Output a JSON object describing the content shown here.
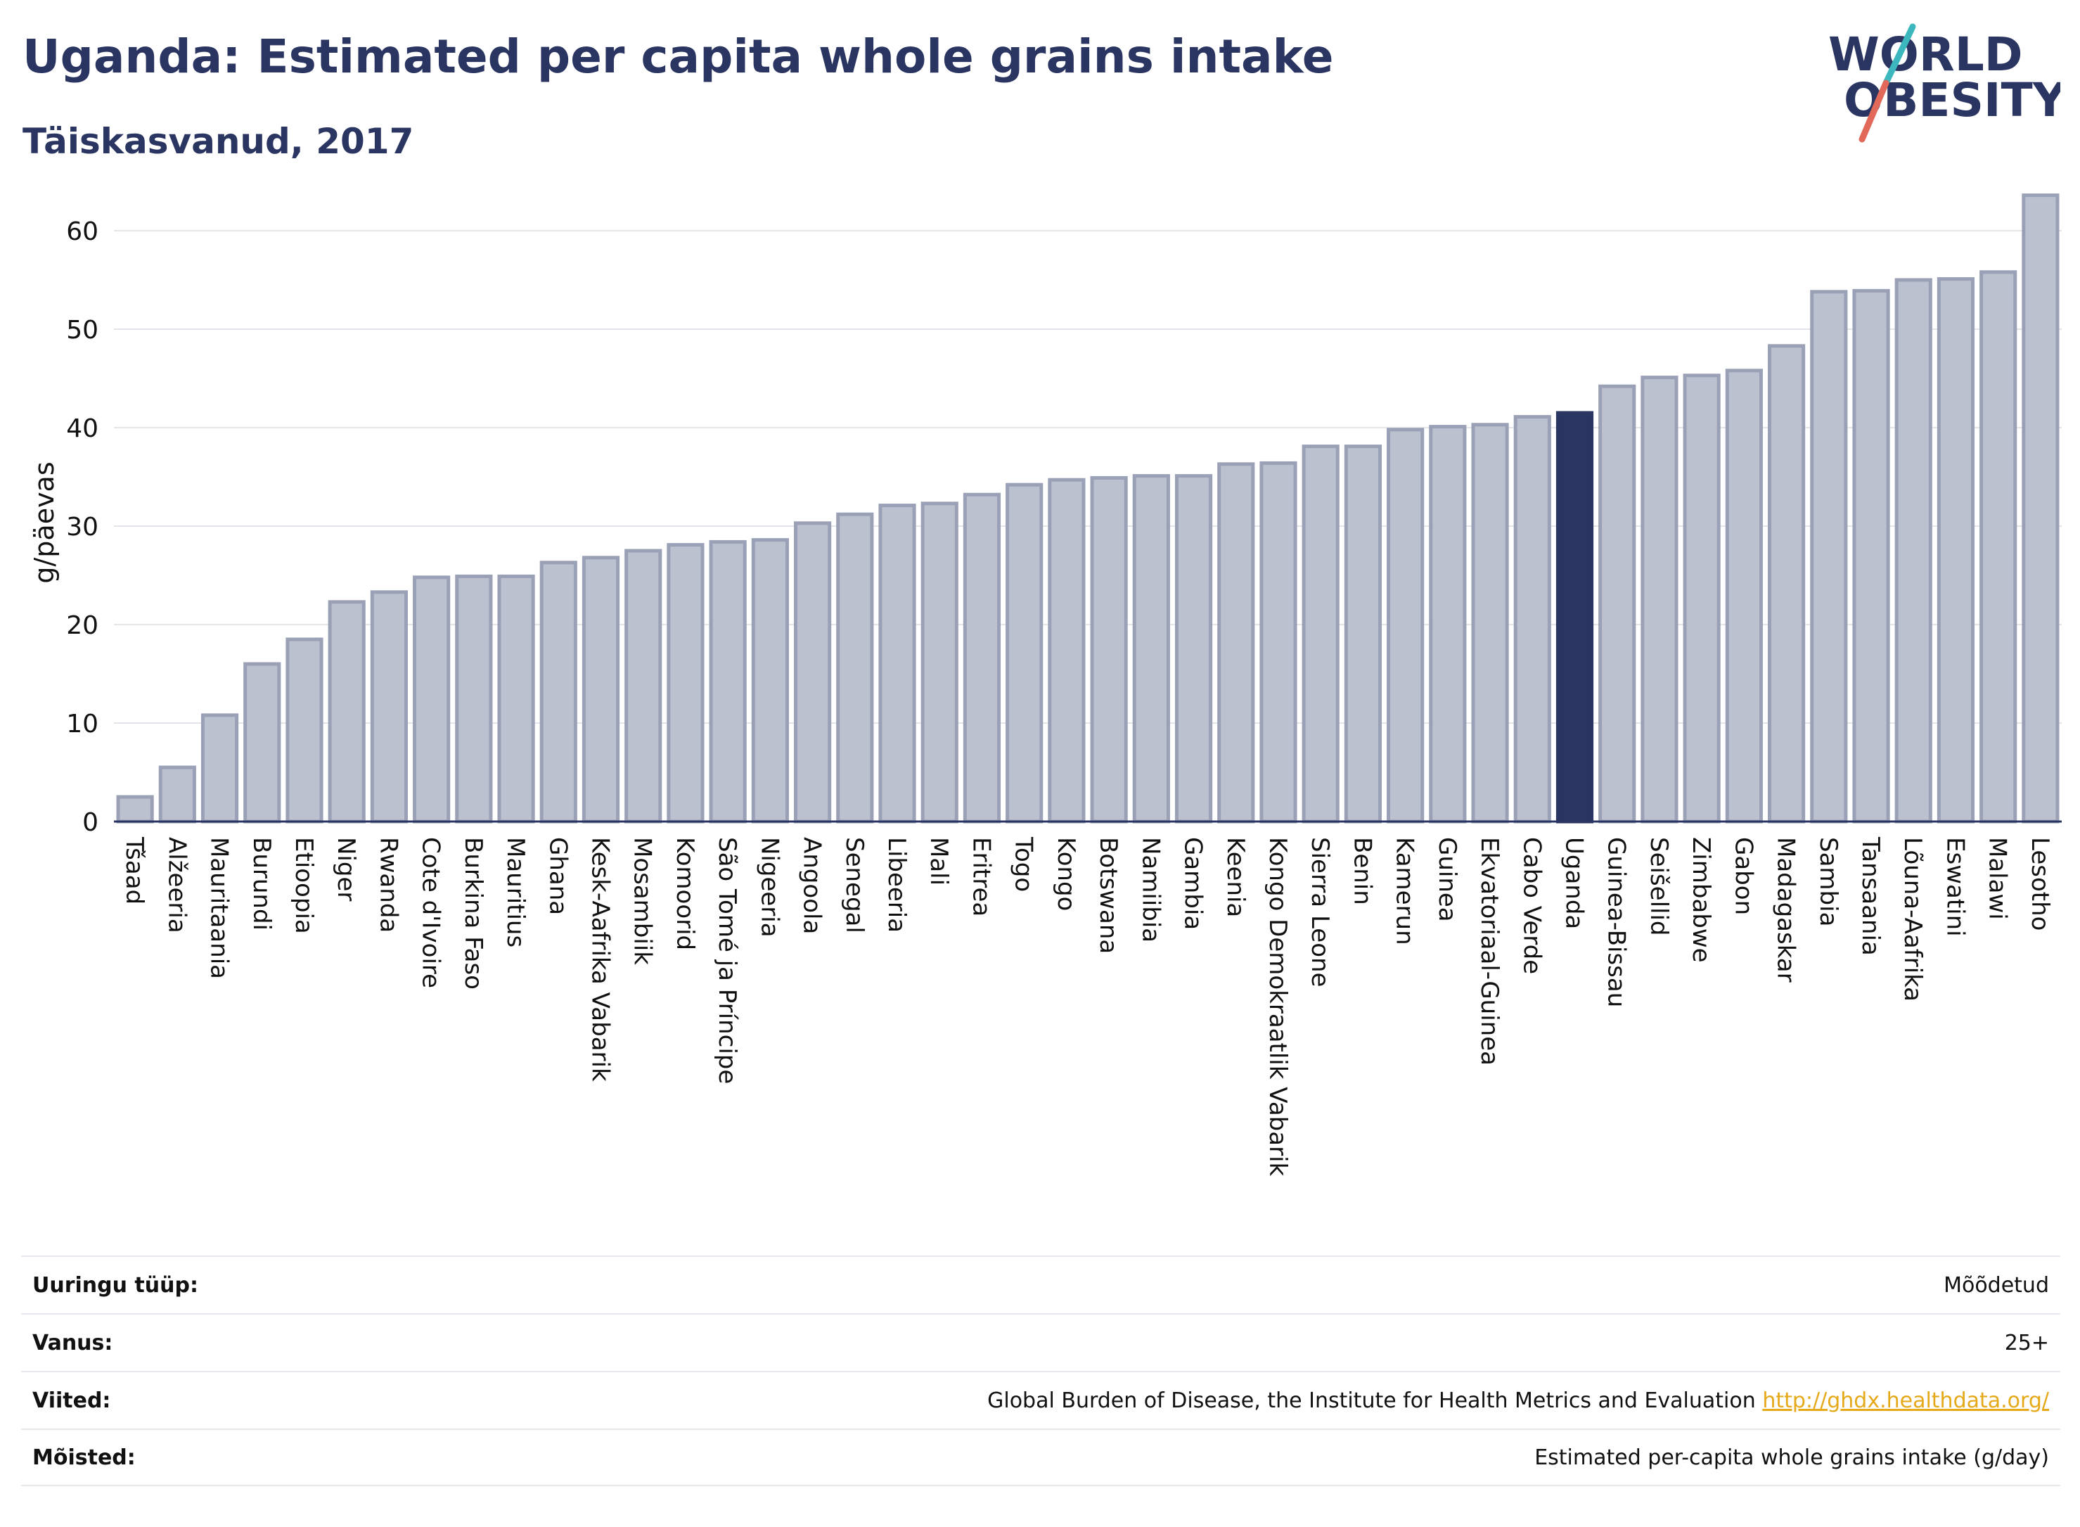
{
  "header": {
    "title": "Uganda: Estimated per capita whole grains intake",
    "subtitle": "Täiskasvanud, 2017"
  },
  "logo": {
    "line1": "WORLD",
    "line2": "OBESITY",
    "colors": {
      "text": "#2b3561",
      "slash_teal": "#3bb7bd",
      "slash_red": "#e2685a"
    }
  },
  "chart_data": {
    "type": "bar",
    "ylabel": "g/päevas",
    "ylim": [
      0,
      65
    ],
    "yticks": [
      0,
      10,
      20,
      30,
      40,
      50,
      60
    ],
    "grid": true,
    "highlight": "Uganda",
    "colors": {
      "bar": "#bcc1cf",
      "bar_edge": "#9aa1b6",
      "highlight": "#2b3561"
    },
    "categories": [
      "Tšaad",
      "Alžeeria",
      "Mauritaania",
      "Burundi",
      "Etioopia",
      "Niger",
      "Rwanda",
      "Cote d'Ivoire",
      "Burkina Faso",
      "Mauritius",
      "Ghana",
      "Kesk-Aafrika Vabarik",
      "Mosambiik",
      "Komoorid",
      "São Tomé ja Príncipe",
      "Nigeeria",
      "Angoola",
      "Senegal",
      "Libeeria",
      "Mali",
      "Eritrea",
      "Togo",
      "Kongo",
      "Botswana",
      "Namiibia",
      "Gambia",
      "Keenia",
      "Kongo Demokraatlik Vabarik",
      "Sierra Leone",
      "Benin",
      "Kamerun",
      "Guinea",
      "Ekvatoriaal-Guinea",
      "Cabo Verde",
      "Uganda",
      "Guinea-Bissau",
      "Seišellid",
      "Zimbabwe",
      "Gabon",
      "Madagaskar",
      "Sambia",
      "Tansaania",
      "Lõuna-Aafrika",
      "Eswatini",
      "Malawi",
      "Lesotho"
    ],
    "values": [
      2.5,
      5.5,
      10.8,
      16.0,
      18.5,
      22.3,
      23.3,
      24.8,
      24.9,
      24.9,
      26.3,
      26.8,
      27.5,
      28.1,
      28.4,
      28.6,
      30.3,
      31.2,
      32.1,
      32.3,
      33.2,
      34.2,
      34.7,
      34.9,
      35.1,
      35.1,
      36.3,
      36.4,
      38.1,
      38.1,
      39.8,
      40.1,
      40.3,
      41.1,
      41.5,
      44.2,
      45.1,
      45.3,
      45.8,
      48.3,
      53.8,
      53.9,
      55.0,
      55.1,
      55.8,
      63.6
    ]
  },
  "meta": [
    {
      "label": "Uuringu tüüp:",
      "value": "Mõõdetud"
    },
    {
      "label": "Vanus:",
      "value": "25+"
    },
    {
      "label": "Viited:",
      "value": "Global Burden of Disease, the Institute for Health Metrics and Evaluation",
      "link": "http://ghdx.healthdata.org/"
    },
    {
      "label": "Mõisted:",
      "value": "Estimated per-capita whole grains intake (g/day)"
    }
  ]
}
